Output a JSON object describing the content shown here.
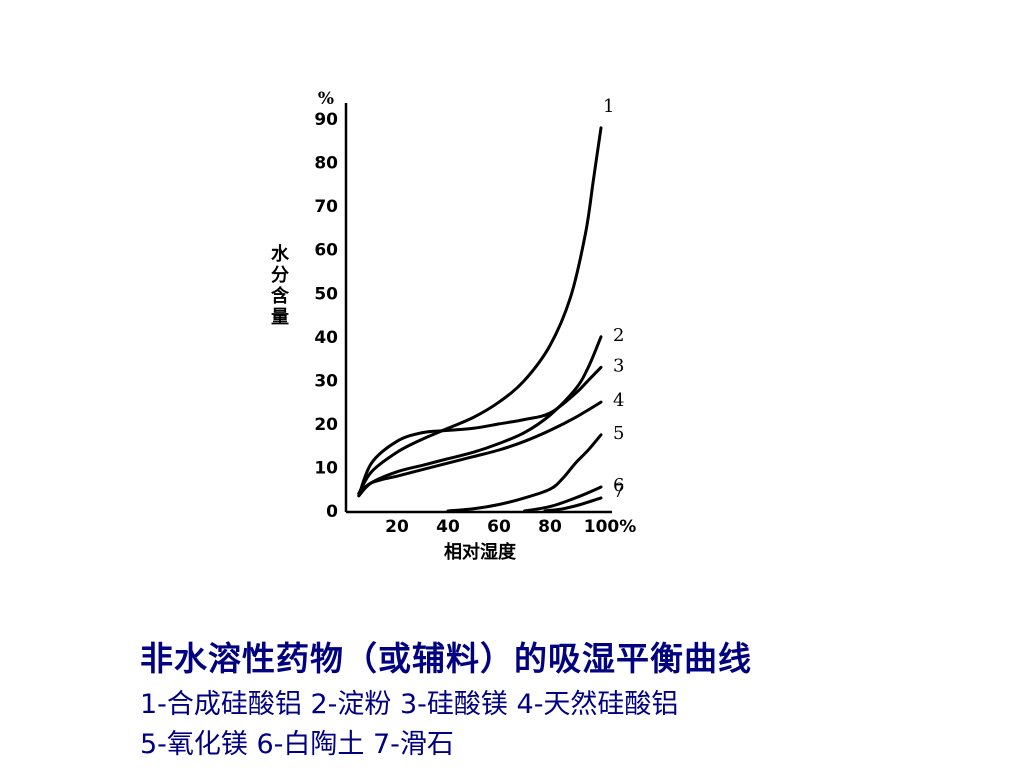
{
  "chart_data": {
    "type": "line",
    "unit_label": "%",
    "ylabel": "水分含量",
    "xlabel": "相对湿度",
    "x_ticks": [
      "20",
      "40",
      "60",
      "80",
      "100%"
    ],
    "y_ticks": [
      "0",
      "10",
      "20",
      "30",
      "40",
      "50",
      "60",
      "70",
      "80",
      "90"
    ],
    "xlim": [
      0,
      100
    ],
    "ylim": [
      0,
      95
    ],
    "grid": false,
    "series": [
      {
        "name": "1",
        "x": [
          5,
          10,
          20,
          30,
          40,
          50,
          60,
          70,
          80,
          88,
          94,
          97,
          100
        ],
        "y": [
          4,
          9,
          13.5,
          16.5,
          19,
          21.5,
          25,
          30,
          38,
          49,
          64,
          76,
          88
        ]
      },
      {
        "name": "2",
        "x": [
          5,
          10,
          20,
          30,
          40,
          50,
          60,
          70,
          80,
          90,
          95,
          100
        ],
        "y": [
          3.5,
          6.5,
          9,
          10.5,
          12,
          13.5,
          15.5,
          18,
          22,
          28,
          33,
          40
        ]
      },
      {
        "name": "3",
        "x": [
          5,
          10,
          20,
          30,
          40,
          50,
          60,
          70,
          80,
          90,
          95,
          100
        ],
        "y": [
          3.5,
          11,
          16,
          18,
          18.5,
          19,
          20,
          21,
          22.5,
          27,
          30,
          33
        ]
      },
      {
        "name": "4",
        "x": [
          5,
          10,
          20,
          30,
          40,
          50,
          60,
          70,
          80,
          90,
          100
        ],
        "y": [
          4,
          6.5,
          8,
          9.5,
          11,
          12.5,
          14,
          16,
          18.5,
          21.5,
          25
        ]
      },
      {
        "name": "5",
        "x": [
          40,
          50,
          60,
          70,
          80,
          85,
          90,
          95,
          100
        ],
        "y": [
          0,
          0.5,
          1.5,
          3,
          5,
          7.5,
          11,
          14,
          17.5
        ]
      },
      {
        "name": "6",
        "x": [
          70,
          80,
          90,
          100
        ],
        "y": [
          0,
          1,
          3,
          5.5
        ]
      },
      {
        "name": "7",
        "x": [
          78,
          85,
          92,
          100
        ],
        "y": [
          0,
          0.5,
          1.5,
          3
        ]
      }
    ]
  },
  "caption": {
    "title": "非水溶性药物（或辅料）的吸湿平衡曲线",
    "line1": "1-合成硅酸铝 2-淀粉 3-硅酸镁 4-天然硅酸铝",
    "line2": "5-氧化镁 6-白陶土 7-滑石"
  },
  "colors": {
    "ink": "#000000",
    "caption": "#000080",
    "background": "#ffffff"
  }
}
